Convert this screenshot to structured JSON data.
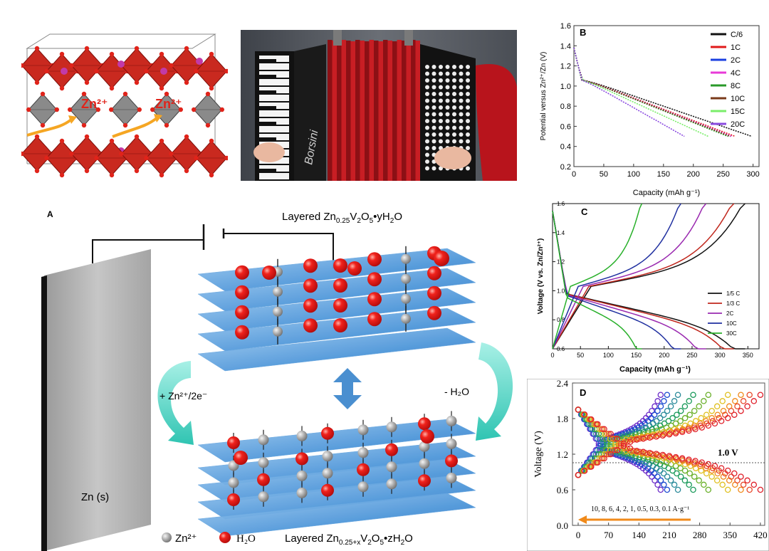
{
  "crystal_panel": {
    "ion_label_1": "Zn²⁺",
    "ion_label_2": "Zn²⁺",
    "colors": {
      "octahedra": "#d0271e",
      "interlayer": "#8c8c8c",
      "arrow": "#f5a623",
      "label": "#e0231a"
    }
  },
  "photo_panel": {
    "brand_text": "Borsini",
    "colors": {
      "bellows": "#c81e24",
      "background": "#5a5e66"
    }
  },
  "panel_b": {
    "letter": "B",
    "xlabel": "Capacity (mAh g⁻¹)",
    "ylabel": "Potential versus Zn²⁺/Zn (V)",
    "xticks": [
      "0",
      "50",
      "100",
      "150",
      "200",
      "250",
      "300"
    ],
    "yticks": [
      "1.6",
      "1.4",
      "1.2",
      "1.0",
      "0.8",
      "0.6",
      "0.4",
      "0.2"
    ],
    "legend": [
      "C/6",
      "1C",
      "2C",
      "4C",
      "8C",
      "10C",
      "15C",
      "20C"
    ]
  },
  "panel_c": {
    "letter": "C",
    "xlabel": "Capacity (mAh g⁻¹)",
    "ylabel": "Voltage (V vs. Zn/Zn²⁺)",
    "xticks": [
      "0",
      "50",
      "100",
      "150",
      "200",
      "250",
      "300",
      "350"
    ],
    "yticks": [
      "1.6",
      "1.4",
      "1.2",
      "1.0",
      "0.8",
      "0.6"
    ],
    "legend": [
      "1/5 C",
      "1/3 C",
      "2C",
      "10C",
      "30C"
    ]
  },
  "panel_d": {
    "letter": "D",
    "ylabel": "Voltage (V)",
    "xticks": [
      "0",
      "70",
      "140",
      "210",
      "280",
      "350",
      "420"
    ],
    "yticks": [
      "2.4",
      "1.8",
      "1.2",
      "0.6",
      "0.0"
    ],
    "reference_label": "1.0 V",
    "rate_annotation": "10, 8, 6, 4, 2, 1, 0.5, 0.3, 0.1 A·g⁻¹"
  },
  "panel_a": {
    "letter": "A",
    "top_title_prefix": "Layered Zn",
    "top_title_sub1": "0.25",
    "top_title_mid": "V",
    "top_title_sub2": "2",
    "top_title_mid2": "O",
    "top_title_sub3": "5",
    "top_title_suffix": "•yH",
    "top_title_sub4": "2",
    "top_title_end": "O",
    "bottom_title_prefix": "Layered Zn",
    "bottom_title_sub1": "0.25+x",
    "bottom_title_mid": "V",
    "bottom_title_sub2": "2",
    "bottom_title_mid2": "O",
    "bottom_title_sub3": "5",
    "bottom_title_suffix": "•zH",
    "bottom_title_sub4": "2",
    "bottom_title_end": "O",
    "left_arrow_label": "+ Zn²⁺/2e⁻",
    "right_arrow_label": "- H₂O",
    "anode_label": "Zn (s)",
    "legend_zn": "Zn²⁺",
    "legend_h2o": "H₂O",
    "colors": {
      "layer": "#3c8ed8",
      "water": "#e8141a",
      "zinc": "#a8a8a8",
      "anode": "#b0b0b0",
      "curved_arrow": "#3fd6c6"
    }
  }
}
